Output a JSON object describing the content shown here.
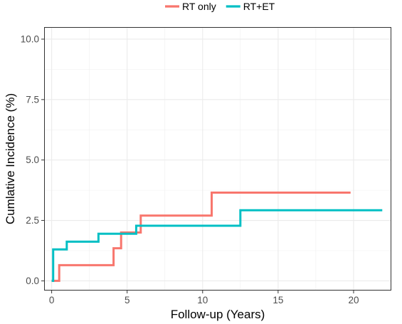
{
  "chart_data": {
    "type": "line",
    "step": true,
    "xlabel": "Follow-up (Years)",
    "ylabel": "Cumlative Incidence (%)",
    "xlim": [
      -0.5,
      22.5
    ],
    "ylim": [
      -0.4,
      10.5
    ],
    "x_ticks": [
      0,
      5,
      10,
      15,
      20
    ],
    "x_tick_labels": [
      "0",
      "5",
      "10",
      "15",
      "20"
    ],
    "y_ticks": [
      0,
      2.5,
      5,
      7.5,
      10
    ],
    "y_tick_labels": [
      "0.0",
      "2.5",
      "5.0",
      "7.5",
      "10.0"
    ],
    "grid": true,
    "legend_position": "top",
    "series": [
      {
        "name": "RT only",
        "color": "#F8766D",
        "x": [
          0.0,
          0.5,
          4.1,
          4.6,
          5.9,
          10.6,
          19.8
        ],
        "y": [
          0.0,
          0.65,
          1.35,
          2.0,
          2.7,
          3.65,
          3.65
        ]
      },
      {
        "name": "RT+ET",
        "color": "#00BFC4",
        "x": [
          0.0,
          0.1,
          1.0,
          3.1,
          5.6,
          12.5,
          21.9
        ],
        "y": [
          0.0,
          1.3,
          1.62,
          1.95,
          2.28,
          2.92,
          2.92
        ]
      }
    ]
  }
}
